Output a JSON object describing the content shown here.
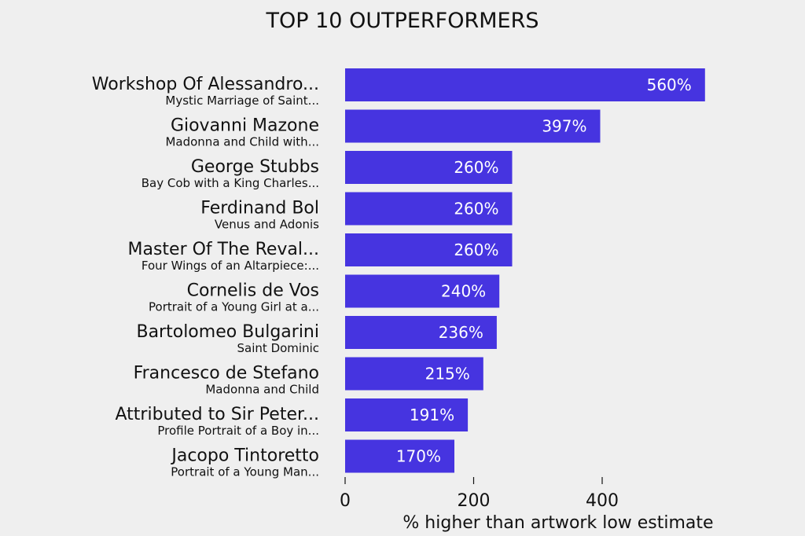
{
  "chart_data": {
    "type": "bar",
    "orientation": "horizontal",
    "title": "TOP 10 OUTPERFORMERS",
    "xlabel": "% higher than artwork low estimate",
    "ylabel": "",
    "xlim": [
      0,
      600
    ],
    "xticks": [
      0,
      200,
      400
    ],
    "bar_color": "#4634e0",
    "grid": false,
    "categories": [
      {
        "artist": "Workshop Of Alessandro...",
        "artwork": "Mystic Marriage of Saint..."
      },
      {
        "artist": "Giovanni Mazone",
        "artwork": "Madonna and Child with..."
      },
      {
        "artist": "George Stubbs",
        "artwork": "Bay Cob with a King Charles..."
      },
      {
        "artist": "Ferdinand Bol",
        "artwork": "Venus and Adonis"
      },
      {
        "artist": "Master Of The Reval...",
        "artwork": "Four Wings of an Altarpiece:..."
      },
      {
        "artist": "Cornelis de Vos",
        "artwork": "Portrait of a Young Girl at a..."
      },
      {
        "artist": "Bartolomeo Bulgarini",
        "artwork": "Saint Dominic"
      },
      {
        "artist": "Francesco de Stefano",
        "artwork": "Madonna and Child"
      },
      {
        "artist": "Attributed to Sir Peter...",
        "artwork": "Profile Portrait of a Boy in..."
      },
      {
        "artist": "Jacopo Tintoretto",
        "artwork": "Portrait of a Young Man..."
      }
    ],
    "values": [
      560,
      397,
      260,
      260,
      260,
      240,
      236,
      215,
      191,
      170
    ],
    "value_labels": [
      "560%",
      "397%",
      "260%",
      "260%",
      "260%",
      "240%",
      "236%",
      "215%",
      "191%",
      "170%"
    ]
  }
}
